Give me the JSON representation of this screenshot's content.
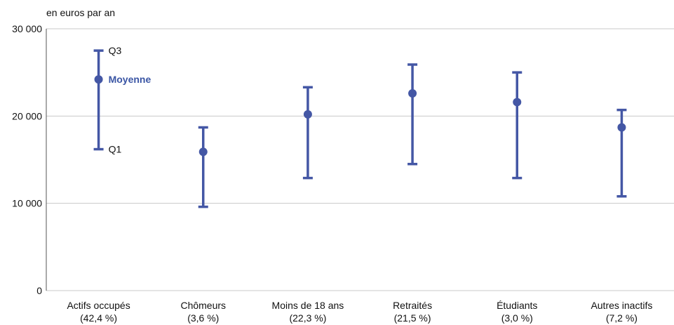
{
  "chart_data": {
    "type": "error-bar",
    "unit_label": "en euros par an",
    "ylim": [
      0,
      30000
    ],
    "y_ticks": [
      {
        "value": 0,
        "label": "0"
      },
      {
        "value": 10000,
        "label": "10 000"
      },
      {
        "value": 20000,
        "label": "20 000"
      },
      {
        "value": 30000,
        "label": "30 000"
      }
    ],
    "grid": "horizontal",
    "categories": [
      {
        "name": "Actifs occupés",
        "share": "(42,4 %)",
        "q1": 16200,
        "mean": 24200,
        "q3": 27500
      },
      {
        "name": "Chômeurs",
        "share": "(3,6 %)",
        "q1": 9600,
        "mean": 15900,
        "q3": 18700
      },
      {
        "name": "Moins de 18 ans",
        "share": "(22,3 %)",
        "q1": 12900,
        "mean": 20200,
        "q3": 23300
      },
      {
        "name": "Retraités",
        "share": "(21,5 %)",
        "q1": 14500,
        "mean": 22600,
        "q3": 25900
      },
      {
        "name": "Étudiants",
        "share": "(3,0 %)",
        "q1": 12900,
        "mean": 21600,
        "q3": 25000
      },
      {
        "name": "Autres inactifs",
        "share": "(7,2 %)",
        "q1": 10800,
        "mean": 18700,
        "q3": 20700
      }
    ],
    "annotations": {
      "q3": "Q3",
      "mean": "Moyenne",
      "q1": "Q1"
    },
    "colors": {
      "series": "#4457a5",
      "grid": "#c8c8c8",
      "axis": "#555555",
      "mean_label": "#3a55a4"
    }
  }
}
